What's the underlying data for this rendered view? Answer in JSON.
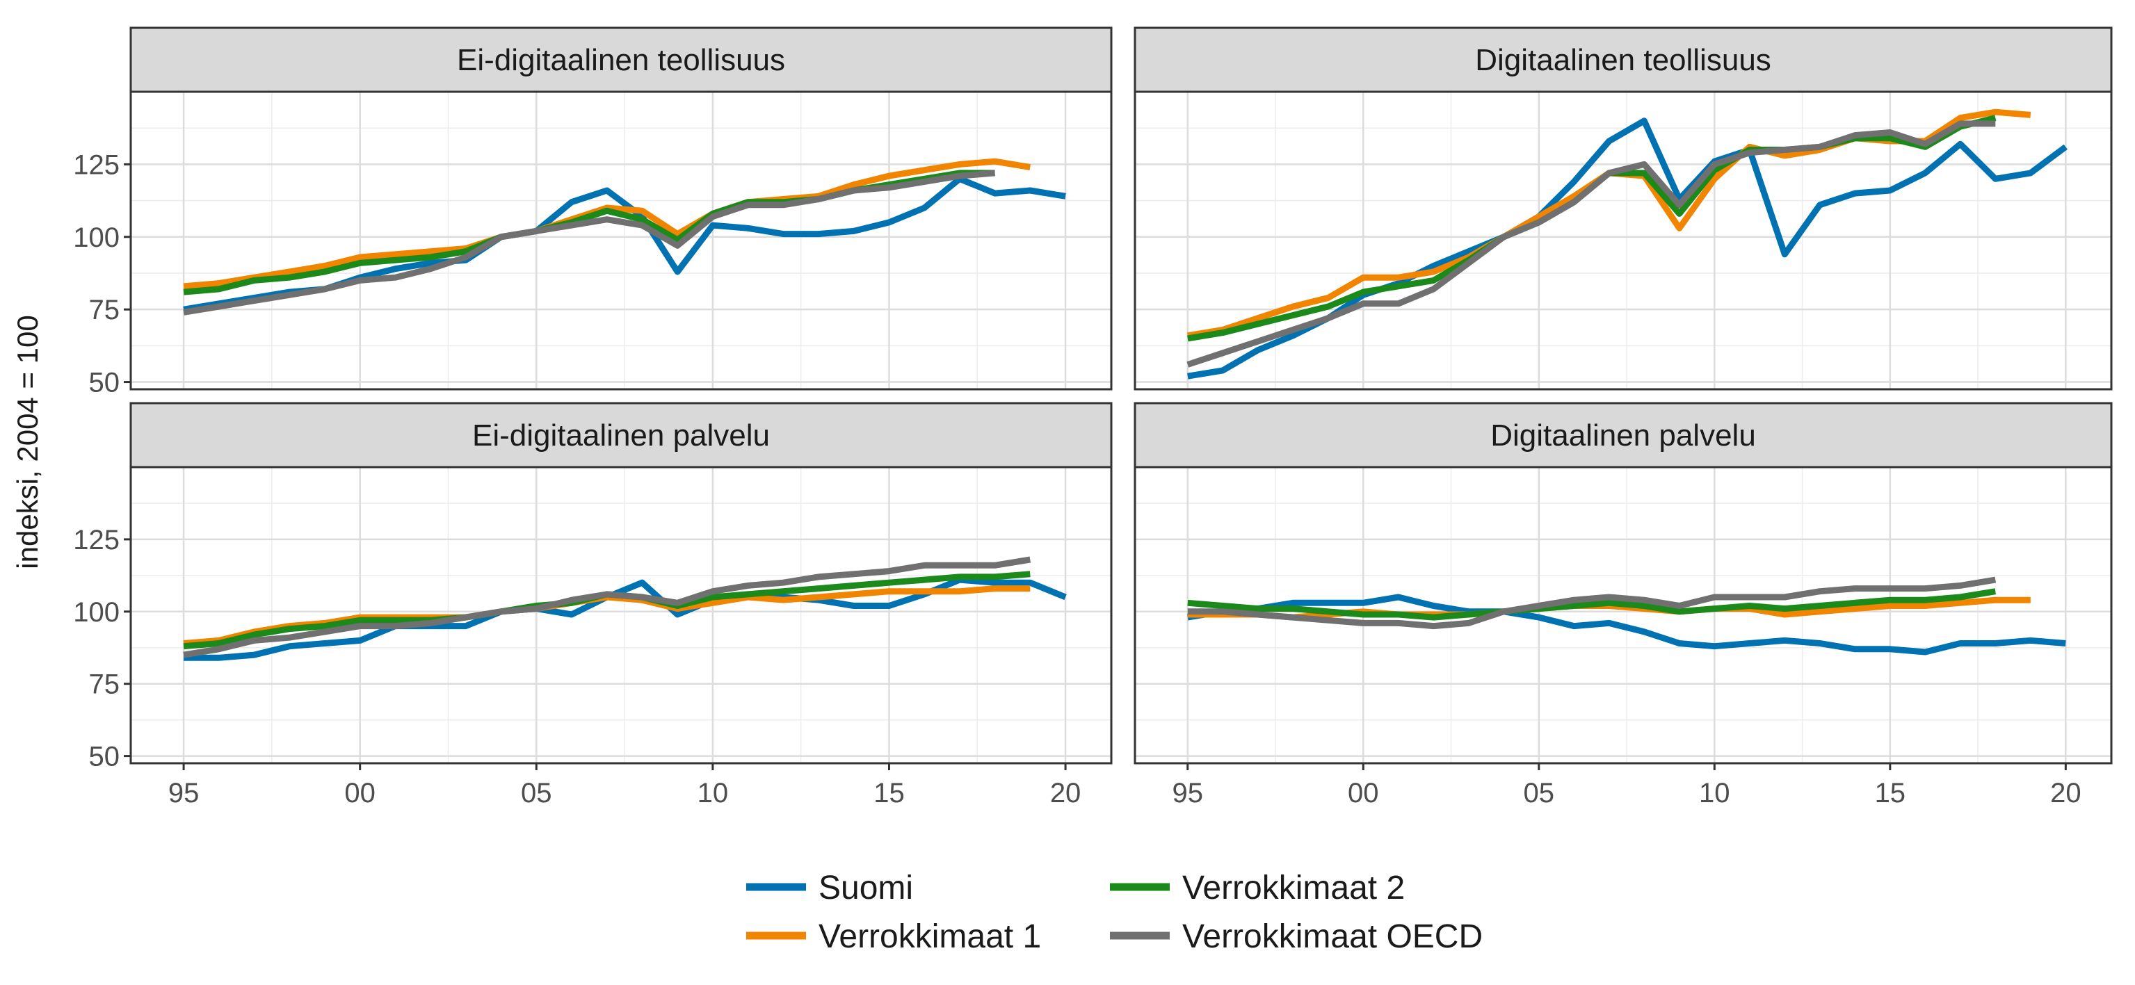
{
  "chart_data": {
    "type": "line",
    "ylabel": "indeksi, 2004 = 100",
    "xlabel": "",
    "x_tick_labels": [
      "95",
      "00",
      "05",
      "10",
      "15",
      "20"
    ],
    "x_ticks": [
      1995,
      2000,
      2005,
      2010,
      2015,
      2020
    ],
    "y_ticks": [
      50,
      75,
      100,
      125
    ],
    "xlim": [
      1993.5,
      2021.3
    ],
    "ylim": [
      47.5,
      150
    ],
    "grid": true,
    "legend_position": "bottom",
    "series_colors": {
      "Suomi": "#0072B2",
      "Verrokkimaat 1": "#F28500",
      "Verrokkimaat 2": "#1B8A1B",
      "Verrokkimaat OECD": "#707070"
    },
    "legend": [
      {
        "name": "Suomi",
        "color": "#0072B2"
      },
      {
        "name": "Verrokkimaat 1",
        "color": "#F28500"
      },
      {
        "name": "Verrokkimaat 2",
        "color": "#1B8A1B"
      },
      {
        "name": "Verrokkimaat OECD",
        "color": "#707070"
      }
    ],
    "panels": [
      {
        "title": "Ei-digitaalinen teollisuus",
        "series": [
          {
            "name": "Suomi",
            "x_start": 1995,
            "values": [
              75,
              77,
              79,
              81,
              82,
              86,
              89,
              91,
              92,
              100,
              102,
              112,
              116,
              107,
              88,
              104,
              103,
              101,
              101,
              102,
              105,
              110,
              120,
              115,
              116,
              114
            ]
          },
          {
            "name": "Verrokkimaat 1",
            "x_start": 1995,
            "values": [
              83,
              84,
              86,
              88,
              90,
              93,
              94,
              95,
              96,
              100,
              102,
              106,
              110,
              109,
              101,
              108,
              112,
              113,
              114,
              118,
              121,
              123,
              125,
              126,
              124
            ]
          },
          {
            "name": "Verrokkimaat 2",
            "x_start": 1995,
            "values": [
              81,
              82,
              85,
              86,
              88,
              91,
              92,
              93,
              95,
              100,
              102,
              105,
              109,
              106,
              99,
              108,
              112,
              112,
              113,
              116,
              118,
              120,
              122,
              122
            ]
          },
          {
            "name": "Verrokkimaat OECD",
            "x_start": 1995,
            "values": [
              74,
              76,
              78,
              80,
              82,
              85,
              86,
              89,
              93,
              100,
              102,
              104,
              106,
              104,
              97,
              107,
              111,
              111,
              113,
              116,
              117,
              119,
              121,
              122
            ]
          }
        ]
      },
      {
        "title": "Digitaalinen teollisuus",
        "series": [
          {
            "name": "Suomi",
            "x_start": 1995,
            "values": [
              52,
              54,
              61,
              66,
              72,
              80,
              84,
              90,
              95,
              100,
              107,
              119,
              133,
              140,
              113,
              126,
              130,
              94,
              111,
              115,
              116,
              122,
              132,
              120,
              122,
              131
            ]
          },
          {
            "name": "Verrokkimaat 1",
            "x_start": 1995,
            "values": [
              66,
              68,
              72,
              76,
              79,
              86,
              86,
              88,
              93,
              100,
              107,
              114,
              122,
              121,
              103,
              120,
              131,
              128,
              130,
              134,
              133,
              133,
              141,
              143,
              142
            ]
          },
          {
            "name": "Verrokkimaat 2",
            "x_start": 1995,
            "values": [
              65,
              67,
              70,
              73,
              76,
              81,
              83,
              85,
              92,
              100,
              105,
              112,
              122,
              122,
              108,
              123,
              130,
              130,
              131,
              134,
              134,
              131,
              138,
              141
            ]
          },
          {
            "name": "Verrokkimaat OECD",
            "x_start": 1995,
            "values": [
              56,
              60,
              64,
              68,
              72,
              77,
              77,
              82,
              91,
              100,
              105,
              112,
              122,
              125,
              111,
              125,
              129,
              130,
              131,
              135,
              136,
              132,
              139,
              139
            ]
          }
        ]
      },
      {
        "title": "Ei-digitaalinen palvelu",
        "series": [
          {
            "name": "Suomi",
            "x_start": 1995,
            "values": [
              84,
              84,
              85,
              88,
              89,
              90,
              95,
              95,
              95,
              100,
              101,
              99,
              105,
              110,
              99,
              104,
              106,
              105,
              104,
              102,
              102,
              106,
              111,
              110,
              110,
              105
            ]
          },
          {
            "name": "Verrokkimaat 1",
            "x_start": 1995,
            "values": [
              89,
              90,
              93,
              95,
              96,
              98,
              98,
              98,
              98,
              100,
              101,
              103,
              105,
              104,
              101,
              103,
              105,
              104,
              105,
              106,
              107,
              107,
              107,
              108,
              108
            ]
          },
          {
            "name": "Verrokkimaat 2",
            "x_start": 1995,
            "values": [
              88,
              89,
              92,
              94,
              95,
              97,
              97,
              97,
              98,
              100,
              102,
              103,
              106,
              105,
              102,
              105,
              106,
              107,
              108,
              109,
              110,
              111,
              112,
              112,
              113
            ]
          },
          {
            "name": "Verrokkimaat OECD",
            "x_start": 1995,
            "values": [
              85,
              87,
              90,
              91,
              93,
              95,
              95,
              96,
              98,
              100,
              101,
              104,
              106,
              105,
              103,
              107,
              109,
              110,
              112,
              113,
              114,
              116,
              116,
              116,
              118
            ]
          }
        ]
      },
      {
        "title": "Digitaalinen palvelu",
        "series": [
          {
            "name": "Suomi",
            "x_start": 1995,
            "values": [
              98,
              100,
              101,
              103,
              103,
              103,
              105,
              102,
              100,
              100,
              98,
              95,
              96,
              93,
              89,
              88,
              89,
              90,
              89,
              87,
              87,
              86,
              89,
              89,
              90,
              89
            ]
          },
          {
            "name": "Verrokkimaat 1",
            "x_start": 1995,
            "values": [
              99,
              99,
              99,
              98,
              99,
              100,
              99,
              99,
              99,
              100,
              101,
              102,
              102,
              101,
              100,
              101,
              101,
              99,
              100,
              101,
              102,
              102,
              103,
              104,
              104
            ]
          },
          {
            "name": "Verrokkimaat 2",
            "x_start": 1995,
            "values": [
              103,
              102,
              101,
              101,
              100,
              99,
              99,
              98,
              99,
              100,
              101,
              102,
              103,
              102,
              100,
              101,
              102,
              101,
              102,
              103,
              104,
              104,
              105,
              107
            ]
          },
          {
            "name": "Verrokkimaat OECD",
            "x_start": 1995,
            "values": [
              100,
              100,
              99,
              98,
              97,
              96,
              96,
              95,
              96,
              100,
              102,
              104,
              105,
              104,
              102,
              105,
              105,
              105,
              107,
              108,
              108,
              108,
              109,
              111
            ]
          }
        ]
      }
    ]
  }
}
